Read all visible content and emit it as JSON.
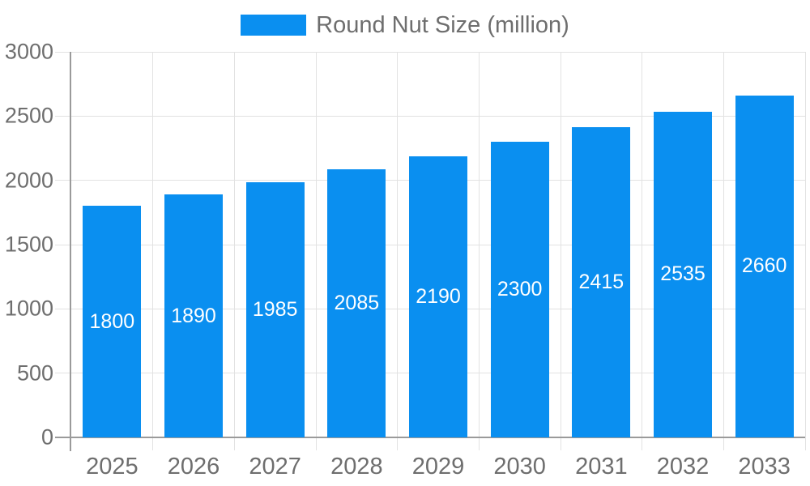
{
  "legend": {
    "label": "Round Nut Size (million)"
  },
  "chart_data": {
    "type": "bar",
    "title": "",
    "series_name": "Round Nut Size (million)",
    "categories": [
      "2025",
      "2026",
      "2027",
      "2028",
      "2029",
      "2030",
      "2031",
      "2032",
      "2033"
    ],
    "values": [
      1800,
      1890,
      1985,
      2085,
      2190,
      2300,
      2415,
      2535,
      2660
    ],
    "xlabel": "",
    "ylabel": "",
    "ylim": [
      0,
      3000
    ],
    "yticks": [
      0,
      500,
      1000,
      1500,
      2000,
      2500,
      3000
    ],
    "grid": true,
    "legend_position": "top-center",
    "bar_color": "#0a8ff0",
    "value_label_position": "inside-center",
    "value_label_color": "#ffffff"
  },
  "colors": {
    "bar": "#0a8ff0",
    "gridline": "#e2e2e2",
    "axis_line": "#9a9a9a",
    "axis_text": "#6e6e6e",
    "legend_text": "#6e6e6e",
    "value_label": "#ffffff",
    "background": "#ffffff"
  }
}
